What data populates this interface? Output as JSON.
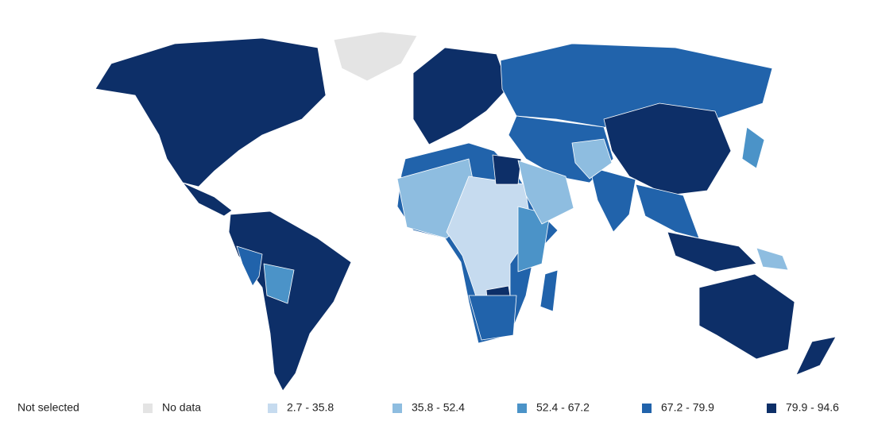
{
  "legend": {
    "not_selected": "Not selected",
    "items": [
      {
        "label": "No data",
        "color": "#e4e4e4"
      },
      {
        "label": "2.7 - 35.8",
        "color": "#c6dbef"
      },
      {
        "label": "35.8 - 52.4",
        "color": "#8ebde0"
      },
      {
        "label": "52.4 - 67.2",
        "color": "#4b93c8"
      },
      {
        "label": "67.2 - 79.9",
        "color": "#2163ab"
      },
      {
        "label": "79.9 - 94.6",
        "color": "#0d2f68"
      }
    ]
  }
}
